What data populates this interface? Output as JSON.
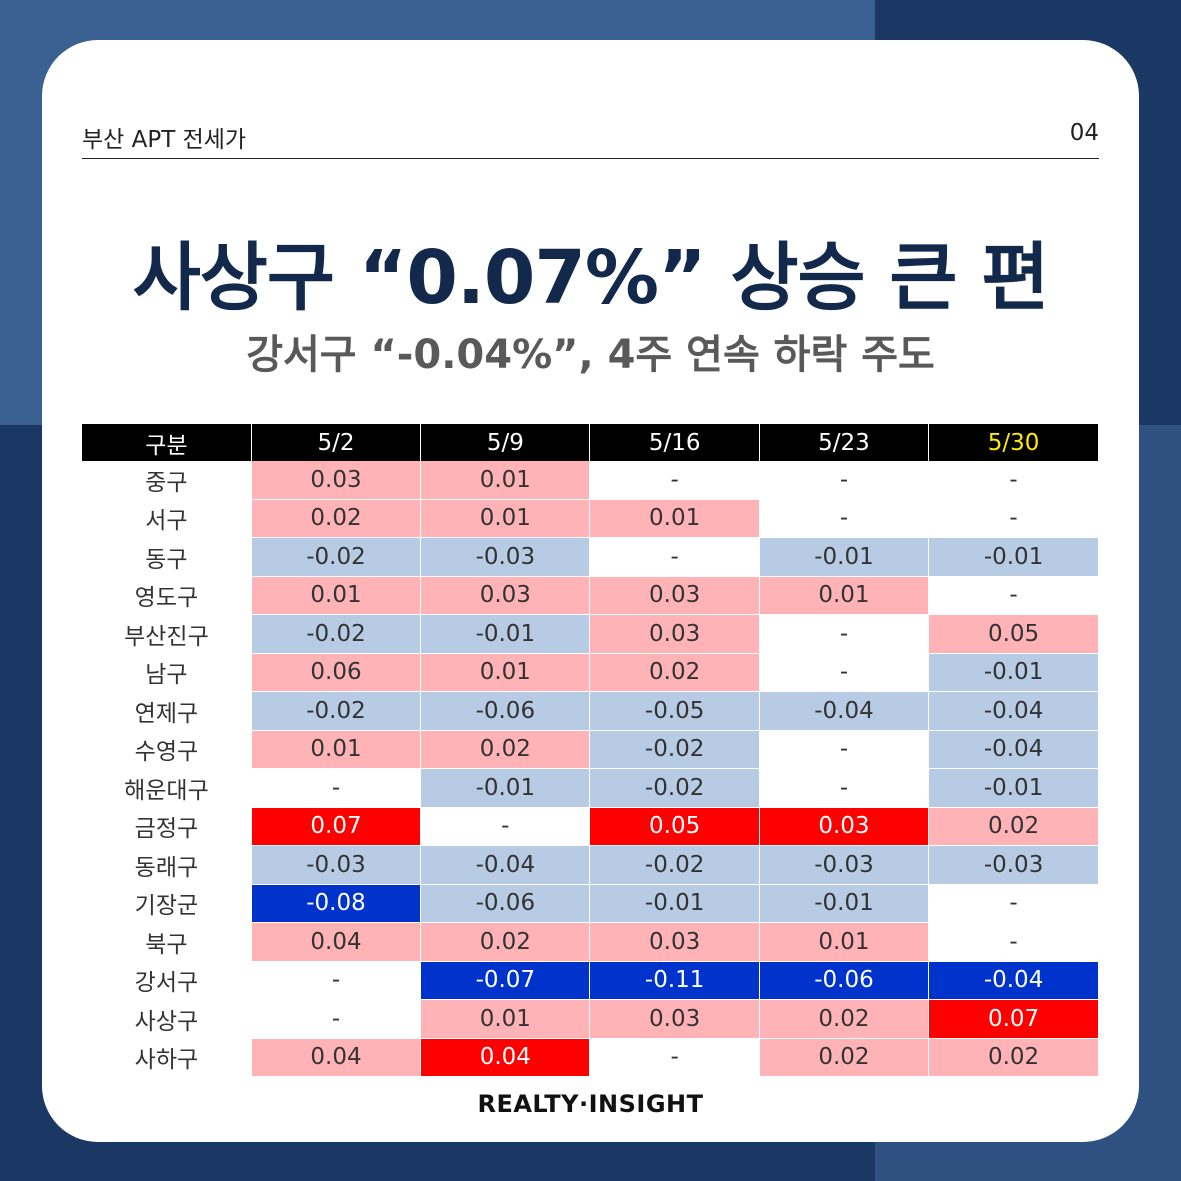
{
  "header": {
    "label": "부산 APT 전세가",
    "page": "04"
  },
  "title": "사상구 “0.07%” 상승 큰 편",
  "subtitle": "강서구 “-0.04%”, 4주 연속 하락 주도",
  "table": {
    "columns": [
      "구분",
      "5/2",
      "5/9",
      "5/16",
      "5/23",
      "5/30"
    ],
    "rows": [
      {
        "region": "중구",
        "values": [
          "0.03",
          "0.01",
          "-",
          "-",
          "-"
        ],
        "styles": [
          "lp",
          "lp",
          "",
          "",
          ""
        ]
      },
      {
        "region": "서구",
        "values": [
          "0.02",
          "0.01",
          "0.01",
          "-",
          "-"
        ],
        "styles": [
          "lp",
          "lp",
          "lp",
          "",
          ""
        ]
      },
      {
        "region": "동구",
        "values": [
          "-0.02",
          "-0.03",
          "-",
          "-0.01",
          "-0.01"
        ],
        "styles": [
          "lb",
          "lb",
          "",
          "lb",
          "lb"
        ]
      },
      {
        "region": "영도구",
        "values": [
          "0.01",
          "0.03",
          "0.03",
          "0.01",
          "-"
        ],
        "styles": [
          "lp",
          "lp",
          "lp",
          "lp",
          ""
        ]
      },
      {
        "region": "부산진구",
        "values": [
          "-0.02",
          "-0.01",
          "0.03",
          "-",
          "0.05"
        ],
        "styles": [
          "lb",
          "lb",
          "lp",
          "",
          "lp"
        ]
      },
      {
        "region": "남구",
        "values": [
          "0.06",
          "0.01",
          "0.02",
          "-",
          "-0.01"
        ],
        "styles": [
          "lp",
          "lp",
          "lp",
          "",
          "lb"
        ]
      },
      {
        "region": "연제구",
        "values": [
          "-0.02",
          "-0.06",
          "-0.05",
          "-0.04",
          "-0.04"
        ],
        "styles": [
          "lb",
          "lb",
          "lb",
          "lb",
          "lb"
        ]
      },
      {
        "region": "수영구",
        "values": [
          "0.01",
          "0.02",
          "-0.02",
          "-",
          "-0.04"
        ],
        "styles": [
          "lp",
          "lp",
          "lb",
          "",
          "lb"
        ]
      },
      {
        "region": "해운대구",
        "values": [
          "-",
          "-0.01",
          "-0.02",
          "-",
          "-0.01"
        ],
        "styles": [
          "",
          "lb",
          "lb",
          "",
          "lb"
        ]
      },
      {
        "region": "금정구",
        "values": [
          "0.07",
          "-",
          "0.05",
          "0.03",
          "0.02"
        ],
        "styles": [
          "dr",
          "",
          "dr",
          "dr",
          "lp"
        ]
      },
      {
        "region": "동래구",
        "values": [
          "-0.03",
          "-0.04",
          "-0.02",
          "-0.03",
          "-0.03"
        ],
        "styles": [
          "lb",
          "lb",
          "lb",
          "lb",
          "lb"
        ]
      },
      {
        "region": "기장군",
        "values": [
          "-0.08",
          "-0.06",
          "-0.01",
          "-0.01",
          "-"
        ],
        "styles": [
          "db",
          "lb",
          "lb",
          "lb",
          ""
        ]
      },
      {
        "region": "북구",
        "values": [
          "0.04",
          "0.02",
          "0.03",
          "0.01",
          "-"
        ],
        "styles": [
          "lp",
          "lp",
          "lp",
          "lp",
          ""
        ]
      },
      {
        "region": "강서구",
        "values": [
          "-",
          "-0.07",
          "-0.11",
          "-0.06",
          "-0.04"
        ],
        "styles": [
          "",
          "db",
          "db",
          "db",
          "db"
        ]
      },
      {
        "region": "사상구",
        "values": [
          "-",
          "0.01",
          "0.03",
          "0.02",
          "0.07"
        ],
        "styles": [
          "",
          "lp",
          "lp",
          "lp",
          "dr"
        ]
      },
      {
        "region": "사하구",
        "values": [
          "0.04",
          "0.04",
          "-",
          "0.02",
          "0.02"
        ],
        "styles": [
          "lp",
          "dr",
          "",
          "lp",
          "lp"
        ]
      }
    ]
  },
  "colors": {
    "light_red": "#ffb3b6",
    "light_blue": "#b7cce4",
    "strong_red": "#ff0000",
    "strong_blue": "#0033cc",
    "highlight_header": "#ffeb00",
    "title_navy": "#13294b"
  },
  "footer": "REALTY·INSIGHT"
}
